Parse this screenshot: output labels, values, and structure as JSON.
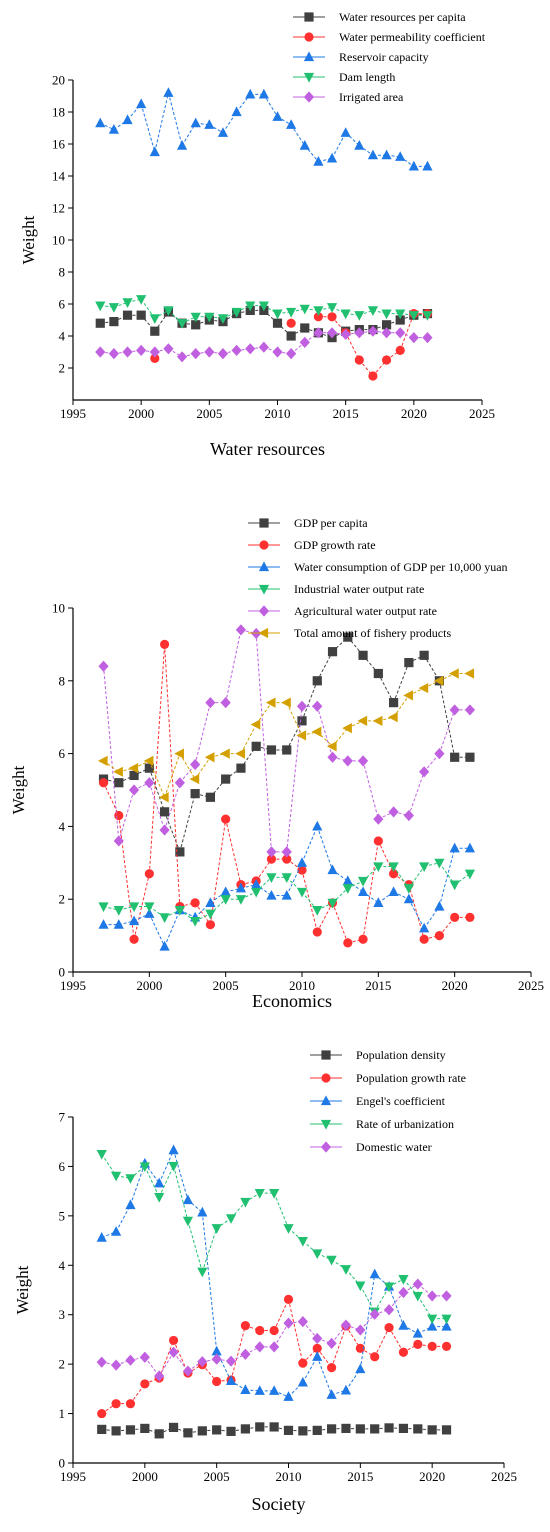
{
  "chart_data": [
    {
      "type": "line",
      "ylabel": "Weight",
      "xlabel": "Water resources",
      "xlim": [
        1995,
        2025
      ],
      "ylim": [
        0,
        20
      ],
      "xticks": [
        1995,
        2000,
        2005,
        2010,
        2015,
        2020,
        2025
      ],
      "yticks": [
        2,
        4,
        6,
        8,
        10,
        12,
        14,
        16,
        18,
        20
      ],
      "legend_position": "top",
      "grid": false,
      "x": [
        1997,
        1998,
        1999,
        2000,
        2001,
        2002,
        2003,
        2004,
        2005,
        2006,
        2007,
        2008,
        2009,
        2010,
        2011,
        2012,
        2013,
        2014,
        2015,
        2016,
        2017,
        2018,
        2019,
        2020,
        2021
      ],
      "series": [
        {
          "name": "Water resources per capita",
          "color": "#404040",
          "marker": "square",
          "values": [
            4.8,
            4.9,
            5.3,
            5.3,
            4.3,
            5.5,
            4.8,
            4.7,
            5.0,
            4.9,
            5.4,
            5.6,
            5.6,
            4.8,
            4.0,
            4.5,
            4.2,
            3.9,
            4.3,
            4.4,
            4.4,
            4.7,
            5.0,
            5.3,
            5.4
          ]
        },
        {
          "name": "Water permeability coefficient",
          "color": "#ff3030",
          "marker": "circle",
          "values": [
            null,
            null,
            null,
            null,
            2.6,
            null,
            null,
            null,
            null,
            null,
            null,
            null,
            null,
            null,
            4.8,
            null,
            5.2,
            5.2,
            4.2,
            2.5,
            1.5,
            2.5,
            3.1,
            5.4,
            5.4
          ]
        },
        {
          "name": "Reservoir capacity",
          "color": "#1e78e6",
          "marker": "triangle-up",
          "values": [
            17.3,
            16.9,
            17.5,
            18.5,
            15.5,
            19.2,
            15.9,
            17.3,
            17.2,
            16.7,
            18.0,
            19.1,
            19.1,
            17.7,
            17.2,
            15.9,
            14.9,
            15.1,
            16.7,
            15.9,
            15.3,
            15.3,
            15.2,
            14.6,
            14.6
          ]
        },
        {
          "name": "Dam length",
          "color": "#20c070",
          "marker": "triangle-down",
          "values": [
            5.9,
            5.8,
            6.1,
            6.3,
            5.1,
            5.6,
            4.8,
            5.2,
            5.2,
            5.1,
            5.5,
            5.9,
            5.9,
            5.4,
            5.5,
            5.7,
            5.6,
            5.8,
            5.4,
            5.3,
            5.6,
            5.4,
            5.4,
            5.3,
            5.3
          ]
        },
        {
          "name": "Irrigated area",
          "color": "#c060e0",
          "marker": "diamond",
          "values": [
            3.0,
            2.9,
            3.0,
            3.1,
            3.0,
            3.2,
            2.7,
            2.9,
            3.0,
            2.9,
            3.1,
            3.2,
            3.3,
            3.0,
            2.9,
            3.6,
            4.2,
            4.2,
            4.1,
            4.2,
            4.3,
            4.2,
            4.2,
            3.9,
            3.9
          ]
        }
      ]
    },
    {
      "type": "line",
      "ylabel": "Weight",
      "xlabel": "Economics",
      "xlim": [
        1995,
        2025
      ],
      "ylim": [
        0,
        10
      ],
      "xticks": [
        1995,
        2000,
        2005,
        2010,
        2015,
        2020,
        2025
      ],
      "yticks": [
        0,
        2,
        4,
        6,
        8,
        10
      ],
      "legend_position": "top",
      "grid": false,
      "x": [
        1997,
        1998,
        1999,
        2000,
        2001,
        2002,
        2003,
        2004,
        2005,
        2006,
        2007,
        2008,
        2009,
        2010,
        2011,
        2012,
        2013,
        2014,
        2015,
        2016,
        2017,
        2018,
        2019,
        2020,
        2021
      ],
      "series": [
        {
          "name": "GDP per capita",
          "color": "#404040",
          "marker": "square",
          "values": [
            5.3,
            5.2,
            5.4,
            5.6,
            4.4,
            3.3,
            4.9,
            4.8,
            5.3,
            5.6,
            6.2,
            6.1,
            6.1,
            6.9,
            8.0,
            8.8,
            9.2,
            8.7,
            8.2,
            7.4,
            8.5,
            8.7,
            8.0,
            5.9,
            5.9
          ]
        },
        {
          "name": "GDP growth rate",
          "color": "#ff3030",
          "marker": "circle",
          "values": [
            5.2,
            4.3,
            0.9,
            2.7,
            9.0,
            1.8,
            1.9,
            1.3,
            4.2,
            2.4,
            2.5,
            3.1,
            3.1,
            2.8,
            1.1,
            1.9,
            0.8,
            0.9,
            3.6,
            2.7,
            2.4,
            0.9,
            1.0,
            1.5,
            1.5
          ]
        },
        {
          "name": "Water consumption of GDP per 10,000 yuan",
          "color": "#1e78e6",
          "marker": "triangle-up",
          "values": [
            1.3,
            1.3,
            1.4,
            1.6,
            0.7,
            1.7,
            1.5,
            1.9,
            2.2,
            2.3,
            2.4,
            2.1,
            2.1,
            3.0,
            4.0,
            2.8,
            2.5,
            2.2,
            1.9,
            2.2,
            2.0,
            1.2,
            1.8,
            3.4,
            3.4
          ]
        },
        {
          "name": "Industrial water output rate",
          "color": "#20c070",
          "marker": "triangle-down",
          "values": [
            1.8,
            1.7,
            1.8,
            1.8,
            1.5,
            1.7,
            1.4,
            1.6,
            2.0,
            2.0,
            2.2,
            2.6,
            2.6,
            2.2,
            1.7,
            1.9,
            2.3,
            2.5,
            2.9,
            2.9,
            2.3,
            2.9,
            3.0,
            2.4,
            2.7
          ]
        },
        {
          "name": "Agricultural water output rate",
          "color": "#c060e0",
          "marker": "diamond",
          "values": [
            8.4,
            3.6,
            5.0,
            5.2,
            3.9,
            5.2,
            5.7,
            7.4,
            7.4,
            9.4,
            9.3,
            3.3,
            3.3,
            7.3,
            7.3,
            5.9,
            5.8,
            5.8,
            4.2,
            4.4,
            4.3,
            5.5,
            6.0,
            7.2,
            7.2
          ]
        },
        {
          "name": "Total amount of fishery products",
          "color": "#d4a000",
          "marker": "triangle-left",
          "values": [
            5.8,
            5.5,
            5.6,
            5.8,
            4.8,
            6.0,
            5.3,
            5.9,
            6.0,
            6.0,
            6.8,
            7.4,
            7.4,
            6.5,
            6.6,
            6.2,
            6.7,
            6.9,
            6.9,
            7.0,
            7.6,
            7.8,
            8.0,
            8.2,
            8.2
          ]
        }
      ]
    },
    {
      "type": "line",
      "ylabel": "Weight",
      "xlabel": "Society",
      "xlim": [
        1995,
        2025
      ],
      "ylim": [
        0,
        7
      ],
      "xticks": [
        1995,
        2000,
        2005,
        2010,
        2015,
        2020,
        2025
      ],
      "yticks": [
        0,
        1,
        2,
        3,
        4,
        5,
        6,
        7
      ],
      "legend_position": "top",
      "grid": false,
      "x": [
        1997,
        1998,
        1999,
        2000,
        2001,
        2002,
        2003,
        2004,
        2005,
        2006,
        2007,
        2008,
        2009,
        2010,
        2011,
        2012,
        2013,
        2014,
        2015,
        2016,
        2017,
        2018,
        2019,
        2020,
        2021
      ],
      "series": [
        {
          "name": "Population density",
          "color": "#404040",
          "marker": "square",
          "values": [
            0.68,
            0.65,
            0.67,
            0.7,
            0.59,
            0.72,
            0.61,
            0.65,
            0.67,
            0.64,
            0.69,
            0.73,
            0.73,
            0.66,
            0.65,
            0.66,
            0.69,
            0.7,
            0.69,
            0.69,
            0.71,
            0.7,
            0.69,
            0.67,
            0.67
          ]
        },
        {
          "name": "Population growth rate",
          "color": "#ff3030",
          "marker": "circle",
          "values": [
            1.0,
            1.2,
            1.2,
            1.6,
            1.72,
            2.48,
            1.82,
            1.99,
            1.65,
            1.68,
            2.78,
            2.68,
            2.68,
            3.31,
            2.02,
            2.32,
            1.93,
            2.77,
            2.32,
            2.15,
            2.74,
            2.24,
            2.4,
            2.36,
            2.36
          ]
        },
        {
          "name": "Engel's coefficient",
          "color": "#1e78e6",
          "marker": "triangle-up",
          "values": [
            4.56,
            4.68,
            5.22,
            6.06,
            5.66,
            6.33,
            5.32,
            5.07,
            2.26,
            1.66,
            1.48,
            1.46,
            1.46,
            1.34,
            1.63,
            2.15,
            1.38,
            1.47,
            1.9,
            3.82,
            3.57,
            2.78,
            2.62,
            2.76,
            2.76
          ]
        },
        {
          "name": "Rate of urbanization",
          "color": "#20c070",
          "marker": "triangle-down",
          "values": [
            6.25,
            5.81,
            5.76,
            6.0,
            5.38,
            6.01,
            4.9,
            3.87,
            4.75,
            4.95,
            5.28,
            5.46,
            5.46,
            4.75,
            4.49,
            4.24,
            4.11,
            3.92,
            3.59,
            3.06,
            3.57,
            3.72,
            3.38,
            2.92,
            2.92
          ]
        },
        {
          "name": "Domestic water",
          "color": "#c060e0",
          "marker": "diamond",
          "values": [
            2.04,
            1.98,
            2.08,
            2.14,
            1.76,
            2.24,
            1.86,
            2.05,
            2.1,
            2.06,
            2.2,
            2.35,
            2.35,
            2.83,
            2.86,
            2.52,
            2.42,
            2.79,
            2.69,
            3.01,
            3.1,
            3.45,
            3.62,
            3.38,
            3.38
          ]
        }
      ]
    }
  ]
}
